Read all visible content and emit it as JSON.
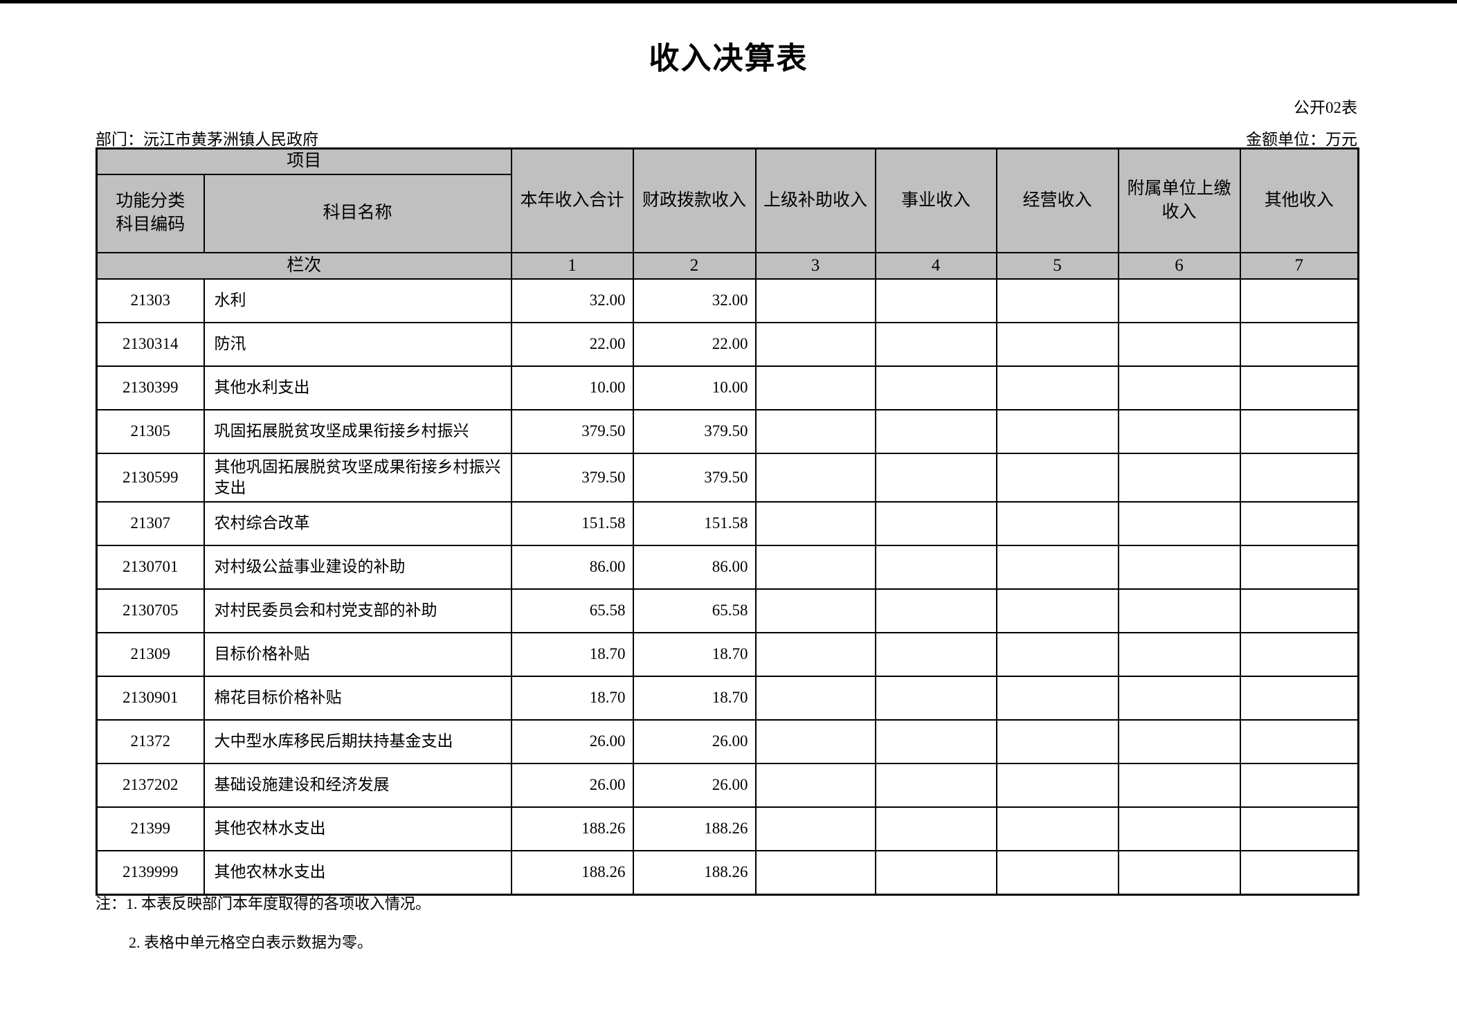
{
  "page": {
    "title": "收入决算表",
    "table_code": "公开02表",
    "department": "部门：沅江市黄茅洲镇人民政府",
    "unit": "金额单位：万元"
  },
  "table": {
    "header": {
      "project": "项目",
      "code_label": "功能分类科目编码",
      "name_label": "科目名称",
      "columns": [
        "本年收入合计",
        "财政拨款收入",
        "上级补助收入",
        "事业收入",
        "经营收入",
        "附属单位上缴收入",
        "其他收入"
      ],
      "row_label": "栏次",
      "column_numbers": [
        "1",
        "2",
        "3",
        "4",
        "5",
        "6",
        "7"
      ]
    },
    "rows": [
      {
        "code": "21303",
        "name": "水利",
        "c1": "32.00",
        "c2": "32.00",
        "c3": "",
        "c4": "",
        "c5": "",
        "c6": "",
        "c7": ""
      },
      {
        "code": "2130314",
        "name": "防汛",
        "c1": "22.00",
        "c2": "22.00",
        "c3": "",
        "c4": "",
        "c5": "",
        "c6": "",
        "c7": ""
      },
      {
        "code": "2130399",
        "name": "其他水利支出",
        "c1": "10.00",
        "c2": "10.00",
        "c3": "",
        "c4": "",
        "c5": "",
        "c6": "",
        "c7": ""
      },
      {
        "code": "21305",
        "name": "巩固拓展脱贫攻坚成果衔接乡村振兴",
        "c1": "379.50",
        "c2": "379.50",
        "c3": "",
        "c4": "",
        "c5": "",
        "c6": "",
        "c7": ""
      },
      {
        "code": "2130599",
        "name": "其他巩固拓展脱贫攻坚成果衔接乡村振兴支出",
        "c1": "379.50",
        "c2": "379.50",
        "c3": "",
        "c4": "",
        "c5": "",
        "c6": "",
        "c7": ""
      },
      {
        "code": "21307",
        "name": "农村综合改革",
        "c1": "151.58",
        "c2": "151.58",
        "c3": "",
        "c4": "",
        "c5": "",
        "c6": "",
        "c7": ""
      },
      {
        "code": "2130701",
        "name": "对村级公益事业建设的补助",
        "c1": "86.00",
        "c2": "86.00",
        "c3": "",
        "c4": "",
        "c5": "",
        "c6": "",
        "c7": ""
      },
      {
        "code": "2130705",
        "name": "对村民委员会和村党支部的补助",
        "c1": "65.58",
        "c2": "65.58",
        "c3": "",
        "c4": "",
        "c5": "",
        "c6": "",
        "c7": ""
      },
      {
        "code": "21309",
        "name": "目标价格补贴",
        "c1": "18.70",
        "c2": "18.70",
        "c3": "",
        "c4": "",
        "c5": "",
        "c6": "",
        "c7": ""
      },
      {
        "code": "2130901",
        "name": "棉花目标价格补贴",
        "c1": "18.70",
        "c2": "18.70",
        "c3": "",
        "c4": "",
        "c5": "",
        "c6": "",
        "c7": ""
      },
      {
        "code": "21372",
        "name": "大中型水库移民后期扶持基金支出",
        "c1": "26.00",
        "c2": "26.00",
        "c3": "",
        "c4": "",
        "c5": "",
        "c6": "",
        "c7": ""
      },
      {
        "code": "2137202",
        "name": "基础设施建设和经济发展",
        "c1": "26.00",
        "c2": "26.00",
        "c3": "",
        "c4": "",
        "c5": "",
        "c6": "",
        "c7": ""
      },
      {
        "code": "21399",
        "name": "其他农林水支出",
        "c1": "188.26",
        "c2": "188.26",
        "c3": "",
        "c4": "",
        "c5": "",
        "c6": "",
        "c7": ""
      },
      {
        "code": "2139999",
        "name": "其他农林水支出",
        "c1": "188.26",
        "c2": "188.26",
        "c3": "",
        "c4": "",
        "c5": "",
        "c6": "",
        "c7": ""
      }
    ]
  },
  "notes": [
    "注：1. 本表反映部门本年度取得的各项收入情况。",
    "2. 表格中单元格空白表示数据为零。"
  ]
}
